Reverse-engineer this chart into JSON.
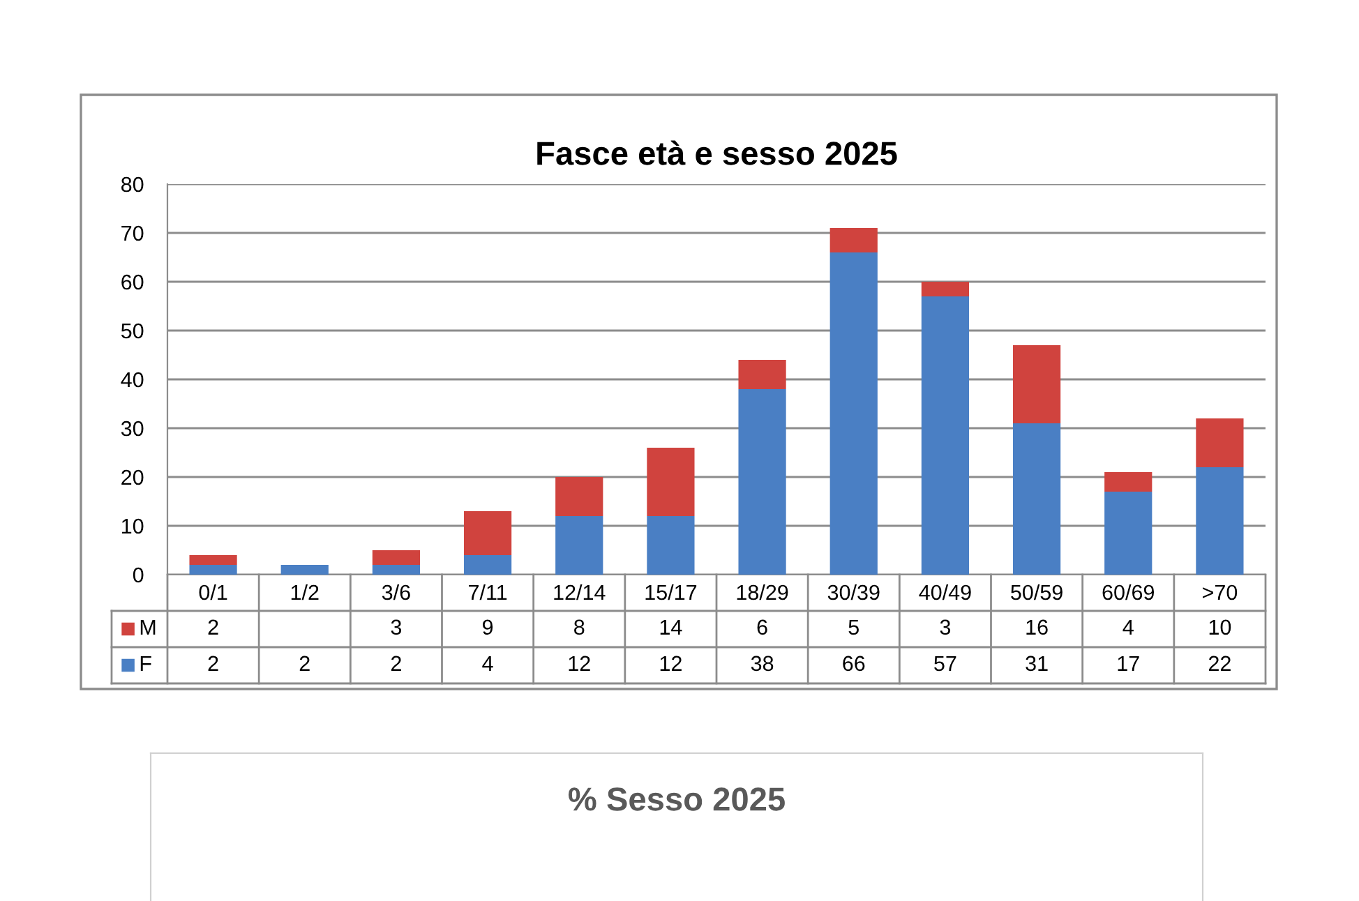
{
  "chart_data": [
    {
      "type": "bar",
      "title": "Fasce età e sesso 2025",
      "stacked": true,
      "categories": [
        "0/1",
        "1/2",
        "3/6",
        "7/11",
        "12/14",
        "15/17",
        "18/29",
        "30/39",
        "40/49",
        "50/59",
        "60/69",
        ">70"
      ],
      "series": [
        {
          "name": "F",
          "color": "#4a7fc4",
          "values": [
            2,
            2,
            2,
            4,
            12,
            12,
            38,
            66,
            57,
            31,
            17,
            22
          ]
        },
        {
          "name": "M",
          "color": "#d0433e",
          "values": [
            2,
            null,
            3,
            9,
            8,
            14,
            6,
            5,
            3,
            16,
            4,
            10
          ]
        }
      ],
      "ylim": [
        0,
        80
      ],
      "yticks": [
        0,
        10,
        20,
        30,
        40,
        50,
        60,
        70,
        80
      ],
      "grid": "y",
      "data_labels": true,
      "legend": "bottom left"
    },
    {
      "type": "other",
      "title": "% Sesso 2025"
    }
  ]
}
